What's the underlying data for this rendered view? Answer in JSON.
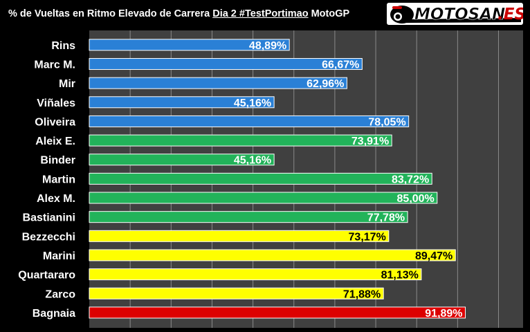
{
  "header": {
    "title_prefix": "% de Vueltas en Ritmo Elevado de Carrera",
    "title_underlined": "Dia 2 #TestPortimao",
    "title_suffix": "MotoGP",
    "logo_text": "MOTOSAN.ES"
  },
  "colors": {
    "blue": "#2a80d6",
    "green": "#22b35a",
    "yellow": "#ffff00",
    "red": "#dd0000",
    "background": "#000000",
    "plot_area": "#404040",
    "gridline": "#8a8a8a"
  },
  "chart_data": {
    "type": "bar",
    "orientation": "horizontal",
    "categories": [
      "Rins",
      "Marc M.",
      "Mir",
      "Viñales",
      "Oliveira",
      "Aleix E.",
      "Binder",
      "Martin",
      "Alex M.",
      "Bastianini",
      "Bezzecchi",
      "Marini",
      "Quartararo",
      "Zarco",
      "Bagnaia"
    ],
    "values": [
      48.89,
      66.67,
      62.96,
      45.16,
      78.05,
      73.91,
      45.16,
      83.72,
      85.0,
      77.78,
      73.17,
      89.47,
      81.13,
      71.88,
      91.89
    ],
    "labels": [
      "48,89%",
      "66,67%",
      "62,96%",
      "45,16%",
      "78,05%",
      "73,91%",
      "45,16%",
      "83,72%",
      "85,00%",
      "77,78%",
      "73,17%",
      "89,47%",
      "81,13%",
      "71,88%",
      "91,89%"
    ],
    "bar_colors": [
      "blue",
      "blue",
      "blue",
      "blue",
      "blue",
      "green",
      "green",
      "green",
      "green",
      "green",
      "yellow",
      "yellow",
      "yellow",
      "yellow",
      "red"
    ],
    "xlim": [
      0,
      100
    ],
    "grid": true,
    "legend": "none"
  }
}
